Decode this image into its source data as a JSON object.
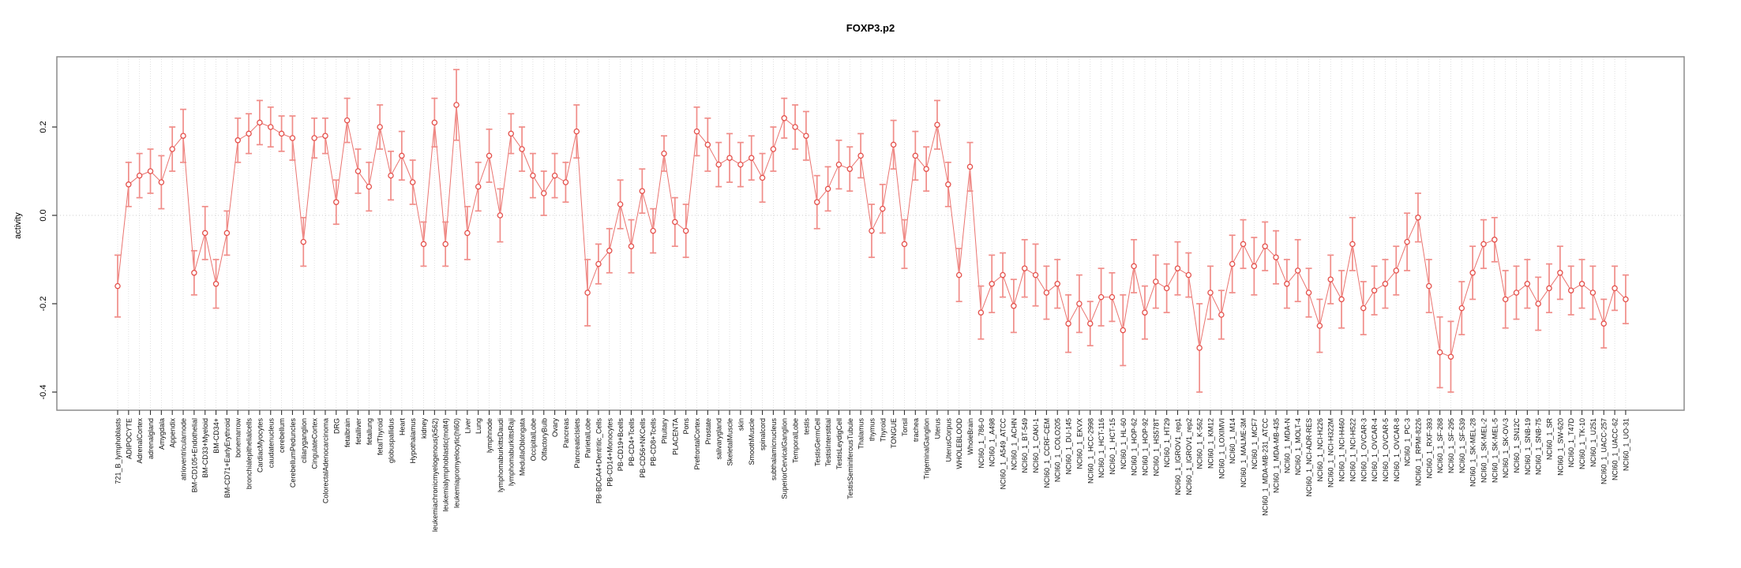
{
  "window": {
    "title": "FOXP3.p2 activity profile plot"
  },
  "chart_data": {
    "type": "scatter",
    "title": "FOXP3.p2",
    "xlabel": "",
    "ylabel": "activity",
    "grid": "vertical-dashed-per-category",
    "zero_line": true,
    "legend": "none",
    "ylim": [
      -0.44,
      0.36
    ],
    "yticks": {
      "values": [
        0.2,
        0.0,
        -0.2,
        -0.4
      ],
      "labels": [
        "0.2",
        "0.0",
        "-0.2",
        "-0.4"
      ]
    },
    "marker": "open-circle",
    "error_bars": "plus-minus-se-with-caps",
    "colors": {
      "point": "#e4504b",
      "line": "#e86560",
      "error_bar": "#f08d89",
      "grid": "#d9d9d9",
      "box": "#8c8c8c",
      "tick": "#333333",
      "label": "#111111",
      "zero_line": "#cccccc"
    },
    "categories": [
      "721_B_lymphoblasts",
      "ADIPOCYTE",
      "AdrenalCortex",
      "adrenalgland",
      "Amygdala",
      "Appendix",
      "atrioventricularnode",
      "BM-CD105+Endothelial",
      "BM-CD33+Myeloid",
      "BM-CD34+",
      "BM-CD71+EarlyErythroid",
      "bonemarrow",
      "bronchialepithelialcells",
      "CardiacMyocytes",
      "caudatenucleus",
      "cerebellum",
      "CerebellumPeduncles",
      "ciliaryganglion",
      "CingulateCortex",
      "ColorectalAdenocarcinoma",
      "DRG",
      "fetalbrain",
      "fetalliver",
      "fetallung",
      "fetalThyroid",
      "globuspallidus",
      "Heart",
      "Hypothalamus",
      "kidney",
      "leukemiachronicmyelogenous(k562)",
      "leukemialymphoblastic(molt4)",
      "leukemiapromyelocytic(hl60)",
      "Liver",
      "Lung",
      "lymphnode",
      "lymphomaburkittsDaudi",
      "lymphomaburkittsRaji",
      "MedullaOblongata",
      "OccipitalLobe",
      "OlfactoryBulb",
      "Ovary",
      "Pancreas",
      "PancreaticIslets",
      "ParietalLobe",
      "PB-BDCA4+Dentritic_Cells",
      "PB-CD14+Monocytes",
      "PB-CD19+Bcells",
      "PB-CD4+Tcells",
      "PB-CD56+NKCells",
      "PB-CD8+Tcells",
      "Pituitary",
      "PLACENTA",
      "Pons",
      "PrefrontalCortex",
      "Prostate",
      "salivarygland",
      "SkeletalMuscle",
      "skin",
      "SmoothMuscle",
      "spinalcord",
      "subthalamicnucleus",
      "SuperiorCervicalGanglion",
      "TemporalLobe",
      "testis",
      "TestisGermCell",
      "TestisInterstitial",
      "TestisLeydigCell",
      "TestisSeminiferousTubule",
      "Thalamus",
      "thymus",
      "Thyroid",
      "TONGUE",
      "Tonsil",
      "trachea",
      "TrigeminalGanglion",
      "Uterus",
      "UterusCorpus",
      "WHOLEBLOOD",
      "WholeBrain",
      "NCI60_1_786-0",
      "NCI60_1_A498",
      "NCI60_1_A549_ATCC",
      "NCI60_1_ACHN",
      "NCI60_1_BT-549",
      "NCI60_1_CAKI-1",
      "NCI60_1_CCRF-CEM",
      "NCI60_1_COLO205",
      "NCI60_1_DU-145",
      "NCI60_1_EKVX",
      "NCI60_1_HCC-2998",
      "NCI60_1_HCT-116",
      "NCI60_1_HCT-15",
      "NCI60_1_HL-60",
      "NCI60_1_HOP-62",
      "NCI60_1_HOP-92",
      "NCI60_1_HS578T",
      "NCI60_1_HT29",
      "NCI60_1_IGROV1_rep1",
      "NCI60_1_IGROV1_rep2",
      "NCI60_1_K-562",
      "NCI60_1_KM12",
      "NCI60_1_LOXIMVI",
      "NCI60_1_M14",
      "NCI60_1_MALME-3M",
      "NCI60_1_MCF7",
      "NCI60_1_MDA-MB-231_ATCC",
      "NCI60_1_MDA-MB-435",
      "NCI60_1_MDA-N",
      "NCI60_1_MOLT-4",
      "NCI60_1_NCI-ADR-RES",
      "NCI60_1_NCI-H226",
      "NCI60_1_NCI-H322M",
      "NCI60_1_NCI-H460",
      "NCI60_1_NCI-H522",
      "NCI60_1_OVCAR-3",
      "NCI60_1_OVCAR-4",
      "NCI60_1_OVCAR-5",
      "NCI60_1_OVCAR-8",
      "NCI60_1_PC-3",
      "NCI60_1_RPMI-8226",
      "NCI60_1_RXF-393",
      "NCI60_1_SF-268",
      "NCI60_1_SF-295",
      "NCI60_1_SF-539",
      "NCI60_1_SK-MEL-28",
      "NCI60_1_SK-MEL-2",
      "NCI60_1_SK-MEL-5",
      "NCI60_1_SK-OV-3",
      "NCI60_1_SN12C",
      "NCI60_1_SNB-19",
      "NCI60_1_SNB-75",
      "NCI60_1_SR",
      "NCI60_1_SW-620",
      "NCI60_1_T47D",
      "NCI60_1_TK-10",
      "NCI60_1_U251",
      "NCI60_1_UACC-257",
      "NCI60_1_UACC-62",
      "NCI60_1_UO-31"
    ],
    "values": [
      -0.16,
      0.07,
      0.09,
      0.1,
      0.075,
      0.15,
      0.18,
      -0.13,
      -0.04,
      -0.155,
      -0.04,
      0.17,
      0.185,
      0.21,
      0.2,
      0.185,
      0.175,
      -0.06,
      0.175,
      0.18,
      0.03,
      0.215,
      0.1,
      0.065,
      0.2,
      0.09,
      0.135,
      0.075,
      -0.065,
      0.21,
      -0.065,
      0.25,
      -0.04,
      0.065,
      0.135,
      0.0,
      0.185,
      0.15,
      0.09,
      0.05,
      0.09,
      0.075,
      0.19,
      -0.175,
      -0.11,
      -0.08,
      0.025,
      -0.07,
      0.055,
      -0.035,
      0.14,
      -0.015,
      -0.035,
      0.19,
      0.16,
      0.115,
      0.13,
      0.115,
      0.13,
      0.085,
      0.15,
      0.22,
      0.2,
      0.18,
      0.03,
      0.06,
      0.115,
      0.105,
      0.135,
      -0.035,
      0.015,
      0.16,
      -0.065,
      0.135,
      0.105,
      0.205,
      0.07,
      -0.135,
      0.11,
      -0.22,
      -0.155,
      -0.135,
      -0.205,
      -0.12,
      -0.135,
      -0.175,
      -0.155,
      -0.245,
      -0.2,
      -0.245,
      -0.185,
      -0.185,
      -0.26,
      -0.115,
      -0.22,
      -0.15,
      -0.165,
      -0.12,
      -0.135,
      -0.3,
      -0.175,
      -0.225,
      -0.11,
      -0.065,
      -0.115,
      -0.07,
      -0.095,
      -0.155,
      -0.125,
      -0.175,
      -0.25,
      -0.145,
      -0.19,
      -0.065,
      -0.21,
      -0.17,
      -0.155,
      -0.125,
      -0.06,
      -0.005,
      -0.16,
      -0.31,
      -0.32,
      -0.21,
      -0.13,
      -0.065,
      -0.055,
      -0.19,
      -0.175,
      -0.155,
      -0.2,
      -0.165,
      -0.13,
      -0.17,
      -0.155,
      -0.175,
      -0.245,
      -0.165,
      -0.19
    ],
    "errors": [
      0.07,
      0.05,
      0.05,
      0.05,
      0.06,
      0.05,
      0.06,
      0.05,
      0.06,
      0.055,
      0.05,
      0.05,
      0.045,
      0.05,
      0.045,
      0.04,
      0.05,
      0.055,
      0.045,
      0.04,
      0.05,
      0.05,
      0.05,
      0.055,
      0.05,
      0.055,
      0.055,
      0.05,
      0.05,
      0.055,
      0.05,
      0.08,
      0.06,
      0.055,
      0.06,
      0.06,
      0.045,
      0.05,
      0.05,
      0.05,
      0.05,
      0.045,
      0.06,
      0.075,
      0.045,
      0.05,
      0.055,
      0.06,
      0.05,
      0.05,
      0.04,
      0.055,
      0.06,
      0.055,
      0.06,
      0.05,
      0.055,
      0.05,
      0.05,
      0.055,
      0.05,
      0.045,
      0.05,
      0.055,
      0.06,
      0.05,
      0.055,
      0.05,
      0.05,
      0.06,
      0.055,
      0.055,
      0.055,
      0.055,
      0.05,
      0.055,
      0.05,
      0.06,
      0.055,
      0.06,
      0.065,
      0.05,
      0.06,
      0.065,
      0.07,
      0.06,
      0.055,
      0.065,
      0.065,
      0.05,
      0.065,
      0.055,
      0.08,
      0.06,
      0.06,
      0.06,
      0.055,
      0.06,
      0.05,
      0.1,
      0.06,
      0.055,
      0.065,
      0.055,
      0.065,
      0.055,
      0.06,
      0.055,
      0.07,
      0.055,
      0.06,
      0.055,
      0.065,
      0.06,
      0.06,
      0.055,
      0.055,
      0.055,
      0.065,
      0.055,
      0.06,
      0.08,
      0.08,
      0.06,
      0.06,
      0.055,
      0.05,
      0.065,
      0.06,
      0.055,
      0.06,
      0.055,
      0.06,
      0.055,
      0.055,
      0.06,
      0.055,
      0.05,
      0.055
    ]
  }
}
